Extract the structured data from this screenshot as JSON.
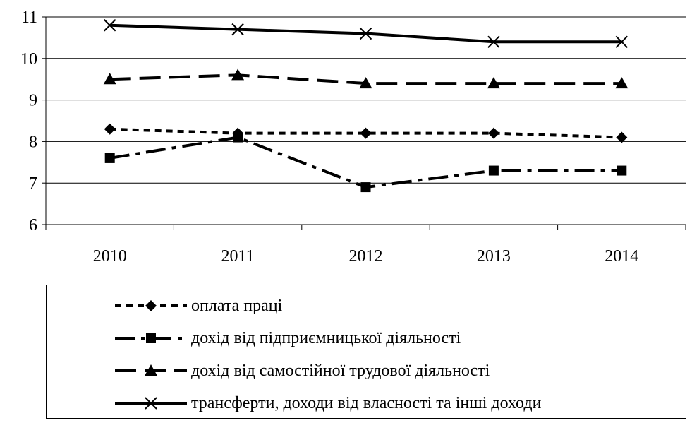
{
  "chart_data": {
    "type": "line",
    "title": "",
    "xlabel": "",
    "ylabel": "",
    "categories": [
      "2010",
      "2011",
      "2012",
      "2013",
      "2014"
    ],
    "ylim": [
      6,
      11
    ],
    "yticks": [
      "6",
      "7",
      "8",
      "9",
      "10",
      "11"
    ],
    "grid": "horizontal",
    "legend_placement": "bottom",
    "series": [
      {
        "name": "оплата праці",
        "values": [
          8.3,
          8.2,
          8.2,
          8.2,
          8.1
        ],
        "marker": "diamond",
        "dash": "short-dash"
      },
      {
        "name": "дохід від підприємницької діяльності",
        "values": [
          7.6,
          8.1,
          6.9,
          7.3,
          7.3
        ],
        "marker": "square",
        "dash": "long-dash-dot"
      },
      {
        "name": "дохід від самостійної трудової діяльності",
        "values": [
          9.5,
          9.6,
          9.4,
          9.4,
          9.4
        ],
        "marker": "triangle",
        "dash": "long-dash"
      },
      {
        "name": "трансферти, доходи від власності та інші доходи",
        "values": [
          10.8,
          10.7,
          10.6,
          10.4,
          10.4
        ],
        "marker": "x",
        "dash": "solid"
      }
    ]
  }
}
